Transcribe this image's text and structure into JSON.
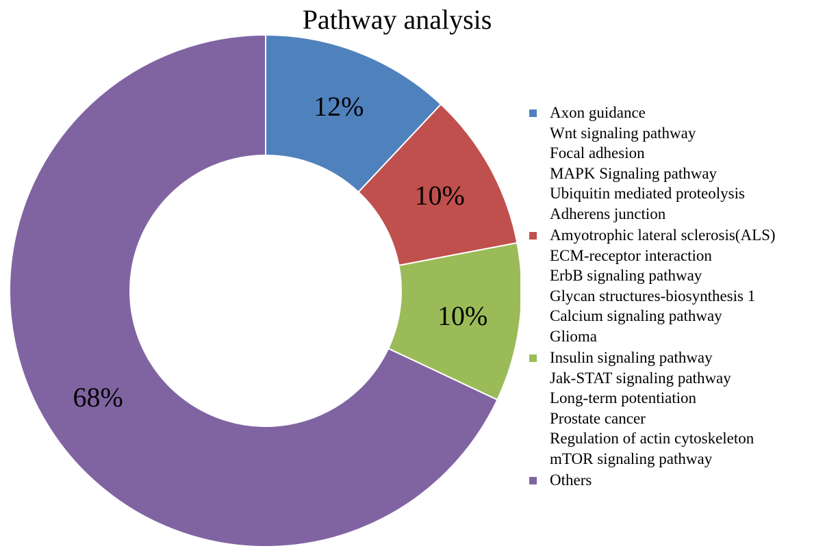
{
  "chart_data": {
    "type": "pie",
    "variant": "donut",
    "title": "Pathway analysis",
    "slices": [
      {
        "value": 12,
        "label": "12%",
        "color": "#4f81bd",
        "legend_lines": [
          "Axon guidance",
          "Wnt signaling pathway",
          "Focal adhesion",
          "MAPK Signaling pathway",
          "Ubiquitin mediated proteolysis",
          "Adherens junction"
        ]
      },
      {
        "value": 10,
        "label": "10%",
        "color": "#c0504d",
        "legend_lines": [
          "Amyotrophic lateral sclerosis(ALS)",
          "ECM-receptor interaction",
          "ErbB signaling pathway",
          "Glycan structures-biosynthesis 1",
          "Calcium signaling pathway",
          "Glioma"
        ]
      },
      {
        "value": 10,
        "label": "10%",
        "color": "#9bbb59",
        "legend_lines": [
          "Insulin signaling pathway",
          "Jak-STAT signaling pathway",
          "Long-term potentiation",
          "Prostate cancer",
          "Regulation of actin cytoskeleton",
          "mTOR signaling pathway"
        ]
      },
      {
        "value": 68,
        "label": "68%",
        "color": "#8064a2",
        "legend_lines": [
          "Others"
        ]
      }
    ],
    "legend_position": "right"
  }
}
